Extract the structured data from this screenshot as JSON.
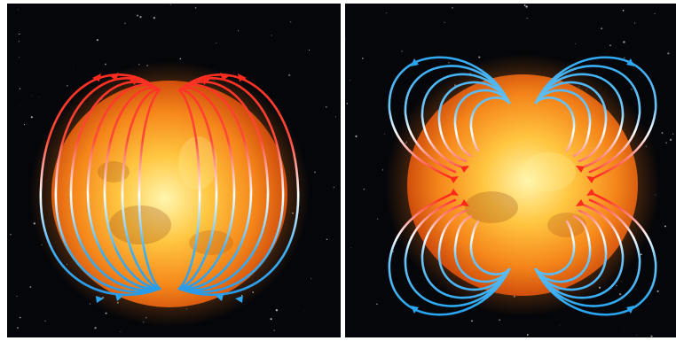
{
  "figure": {
    "panels": [
      {
        "id": "left",
        "field": "dipole",
        "line_pairs": 7,
        "colors": {
          "north": "#ff2a1e",
          "mid": "#ffffff",
          "south": "#2aa6f2"
        }
      },
      {
        "id": "right",
        "field": "quadrupole",
        "line_pairs": 6,
        "colors": {
          "outer": "#2aa6f2",
          "mid": "#ffffff",
          "inner": "#ff2a1e"
        }
      }
    ],
    "star": {
      "core": "#fff2a0",
      "mid": "#ffb020",
      "rim": "#e8550a"
    },
    "background": "#05060a"
  }
}
